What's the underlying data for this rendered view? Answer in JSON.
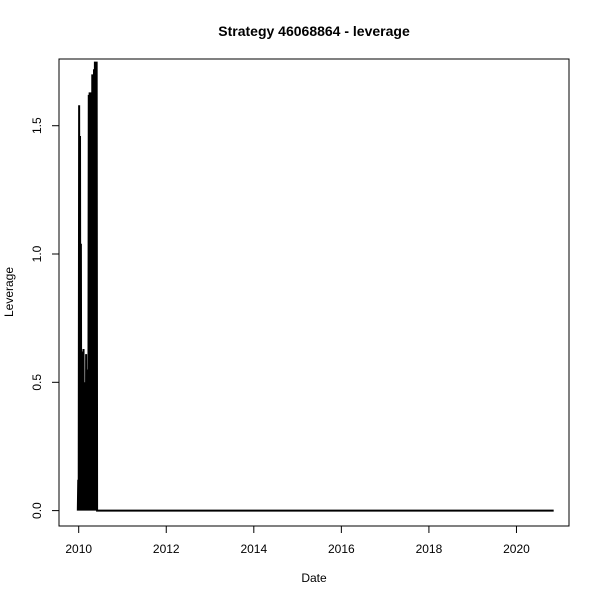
{
  "chart_data": {
    "type": "line",
    "title": "Strategy 46068864 - leverage",
    "xlabel": "Date",
    "ylabel": "Leverage",
    "xlim": [
      2009.55,
      2021.2
    ],
    "ylim": [
      -0.06,
      1.76
    ],
    "x_ticks": [
      "2010",
      "2012",
      "2014",
      "2016",
      "2018",
      "2020"
    ],
    "y_ticks": [
      "0.0",
      "0.5",
      "1.0",
      "1.5"
    ],
    "grid": false,
    "legend": "none",
    "series": [
      {
        "color": "#000000",
        "x": [
          2009.98,
          2009.99,
          2010.0,
          2010.01,
          2010.02,
          2010.03,
          2010.04,
          2010.05,
          2010.06,
          2010.07,
          2010.08,
          2010.09,
          2010.1,
          2010.11,
          2010.12,
          2010.13,
          2010.14,
          2010.15,
          2010.16,
          2010.17,
          2010.18,
          2010.19,
          2010.2,
          2010.21,
          2010.22,
          2010.23,
          2010.24,
          2010.25,
          2010.26,
          2010.27,
          2010.28,
          2010.29,
          2010.3,
          2010.31,
          2010.32,
          2010.33,
          2010.34,
          2010.35,
          2010.36,
          2010.37,
          2010.38,
          2010.39,
          2010.4,
          2010.41,
          2010.42,
          2010.43,
          2010.44,
          2010.45,
          2010.46,
          2010.5,
          2012,
          2014,
          2016,
          2018,
          2020,
          2020.85
        ],
        "y": [
          0.0,
          0.12,
          0.0,
          1.58,
          0.0,
          1.46,
          0.0,
          1.04,
          0.0,
          0.5,
          0.0,
          0.62,
          0.0,
          0.63,
          0.0,
          0.5,
          0.0,
          0.48,
          0.0,
          0.61,
          0.0,
          0.5,
          0.0,
          0.55,
          0.0,
          1.62,
          0.0,
          1.63,
          0.0,
          0.6,
          0.0,
          1.63,
          0.0,
          1.7,
          0.0,
          1.25,
          0.0,
          1.72,
          0.0,
          1.75,
          0.0,
          1.3,
          0.0,
          1.75,
          0.0,
          0.0,
          0.0,
          0.0,
          0.0,
          0.0,
          0.0,
          0.0,
          0.0,
          0.0,
          0.0,
          0.0
        ]
      }
    ]
  }
}
